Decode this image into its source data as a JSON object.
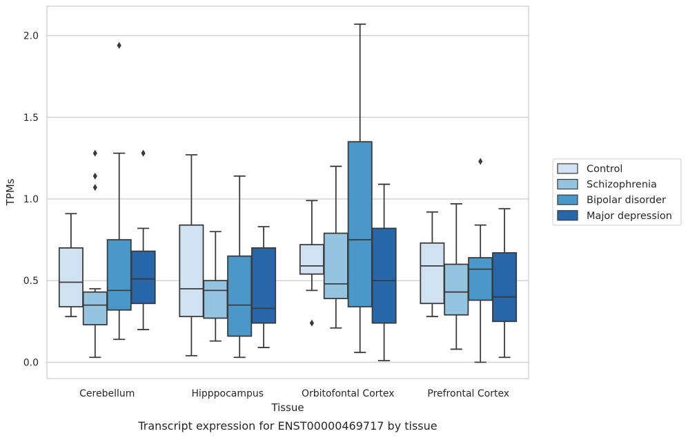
{
  "caption": "Transcript expression for ENST00000469717 by tissue",
  "chart_data": {
    "type": "box",
    "xlabel": "Tissue",
    "ylabel": "TPMs",
    "ylim": [
      -0.1,
      2.18
    ],
    "yticks": [
      0.0,
      0.5,
      1.0,
      1.5,
      2.0
    ],
    "ytick_labels": [
      "0.0",
      "0.5",
      "1.0",
      "1.5",
      "2.0"
    ],
    "grid": "horizontal",
    "legend_position": "right",
    "categories": [
      "Cerebellum",
      "Hipppocampus",
      "Orbitofontal Cortex",
      "Prefrontal Cortex"
    ],
    "series": [
      {
        "name": "Control",
        "color": "#d0e1f2",
        "boxes": [
          {
            "whislo": 0.28,
            "q1": 0.34,
            "med": 0.49,
            "q3": 0.7,
            "whishi": 0.91,
            "fliers": []
          },
          {
            "whislo": 0.04,
            "q1": 0.28,
            "med": 0.45,
            "q3": 0.84,
            "whishi": 1.27,
            "fliers": []
          },
          {
            "whislo": 0.44,
            "q1": 0.54,
            "med": 0.59,
            "q3": 0.72,
            "whishi": 0.99,
            "fliers": [
              0.24
            ]
          },
          {
            "whislo": 0.28,
            "q1": 0.36,
            "med": 0.59,
            "q3": 0.73,
            "whishi": 0.92,
            "fliers": []
          }
        ]
      },
      {
        "name": "Schizophrenia",
        "color": "#94c4df",
        "boxes": [
          {
            "whislo": 0.03,
            "q1": 0.23,
            "med": 0.35,
            "q3": 0.43,
            "whishi": 0.45,
            "fliers": [
              1.07,
              1.14,
              1.28
            ]
          },
          {
            "whislo": 0.13,
            "q1": 0.27,
            "med": 0.44,
            "q3": 0.5,
            "whishi": 0.8,
            "fliers": []
          },
          {
            "whislo": 0.21,
            "q1": 0.39,
            "med": 0.48,
            "q3": 0.79,
            "whishi": 1.2,
            "fliers": []
          },
          {
            "whislo": 0.08,
            "q1": 0.29,
            "med": 0.43,
            "q3": 0.6,
            "whishi": 0.97,
            "fliers": []
          }
        ]
      },
      {
        "name": "Bipolar disorder",
        "color": "#4a98c9",
        "boxes": [
          {
            "whislo": 0.14,
            "q1": 0.32,
            "med": 0.44,
            "q3": 0.75,
            "whishi": 1.28,
            "fliers": [
              1.94
            ]
          },
          {
            "whislo": 0.03,
            "q1": 0.16,
            "med": 0.35,
            "q3": 0.65,
            "whishi": 1.14,
            "fliers": []
          },
          {
            "whislo": 0.06,
            "q1": 0.34,
            "med": 0.75,
            "q3": 1.35,
            "whishi": 2.07,
            "fliers": []
          },
          {
            "whislo": 0.0,
            "q1": 0.38,
            "med": 0.57,
            "q3": 0.64,
            "whishi": 0.84,
            "fliers": [
              1.23
            ]
          }
        ]
      },
      {
        "name": "Major depression",
        "color": "#2766a8",
        "boxes": [
          {
            "whislo": 0.2,
            "q1": 0.36,
            "med": 0.51,
            "q3": 0.68,
            "whishi": 0.82,
            "fliers": [
              1.28
            ]
          },
          {
            "whislo": 0.09,
            "q1": 0.24,
            "med": 0.33,
            "q3": 0.7,
            "whishi": 0.83,
            "fliers": []
          },
          {
            "whislo": 0.01,
            "q1": 0.24,
            "med": 0.5,
            "q3": 0.82,
            "whishi": 1.09,
            "fliers": []
          },
          {
            "whislo": 0.03,
            "q1": 0.25,
            "med": 0.4,
            "q3": 0.67,
            "whishi": 0.94,
            "fliers": []
          }
        ]
      }
    ]
  }
}
